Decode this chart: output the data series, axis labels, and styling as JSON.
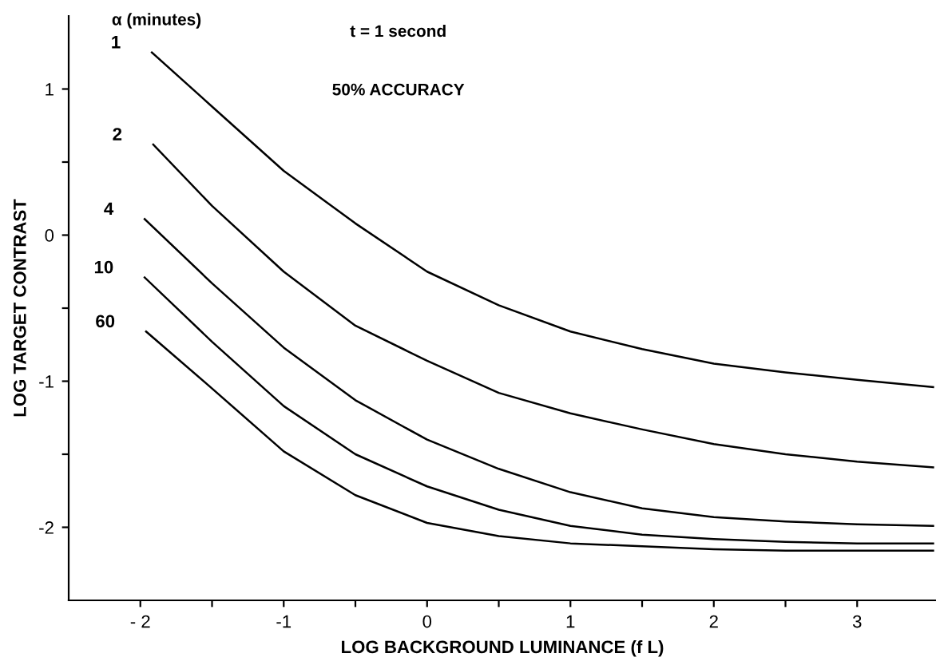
{
  "chart_data": {
    "type": "line",
    "xlabel": "LOG BACKGROUND LUMINANCE (f L)",
    "ylabel": "LOG TARGET CONTRAST",
    "legend_title": "α (minutes)",
    "annotations": [
      "t = 1 second",
      "50% ACCURACY"
    ],
    "xlim": [
      -2.5,
      3.55
    ],
    "ylim": [
      -2.5,
      1.5
    ],
    "xticks": [
      {
        "value": -2,
        "label": "- 2"
      },
      {
        "value": -1.5,
        "label": null
      },
      {
        "value": -1,
        "label": "-1"
      },
      {
        "value": -0.5,
        "label": null
      },
      0,
      {
        "value": 0.5,
        "label": null
      },
      1,
      {
        "value": 1.5,
        "label": null
      },
      2,
      {
        "value": 2.5,
        "label": null
      },
      3
    ],
    "yticks": [
      -2,
      {
        "value": -1.5,
        "label": null
      },
      -1,
      {
        "value": -0.5,
        "label": null
      },
      0,
      {
        "value": 0.5,
        "label": null
      },
      1
    ],
    "grid": false,
    "legend": false,
    "marker": "none",
    "line_style": "solid",
    "series": [
      {
        "name": "1",
        "color": "#000000",
        "x": [
          -1.92,
          -1.5,
          -1,
          -0.5,
          0,
          0.5,
          1,
          1.5,
          2,
          2.5,
          3,
          3.53
        ],
        "values": [
          1.25,
          0.88,
          0.44,
          0.08,
          -0.25,
          -0.48,
          -0.66,
          -0.78,
          -0.88,
          -0.94,
          -0.99,
          -1.04
        ]
      },
      {
        "name": "2",
        "color": "#000000",
        "x": [
          -1.91,
          -1.5,
          -1,
          -0.5,
          0,
          0.5,
          1,
          1.5,
          2,
          2.5,
          3,
          3.53
        ],
        "values": [
          0.62,
          0.2,
          -0.25,
          -0.62,
          -0.86,
          -1.08,
          -1.22,
          -1.33,
          -1.43,
          -1.5,
          -1.55,
          -1.59
        ]
      },
      {
        "name": "4",
        "color": "#000000",
        "x": [
          -1.97,
          -1.5,
          -1,
          -0.5,
          0,
          0.5,
          1,
          1.5,
          2,
          2.5,
          3,
          3.53
        ],
        "values": [
          0.11,
          -0.33,
          -0.77,
          -1.13,
          -1.4,
          -1.6,
          -1.76,
          -1.87,
          -1.93,
          -1.96,
          -1.98,
          -1.99
        ]
      },
      {
        "name": "10",
        "color": "#000000",
        "x": [
          -1.97,
          -1.5,
          -1,
          -0.5,
          0,
          0.5,
          1,
          1.5,
          2,
          2.5,
          3,
          3.53
        ],
        "values": [
          -0.29,
          -0.73,
          -1.17,
          -1.5,
          -1.72,
          -1.88,
          -1.99,
          -2.05,
          -2.08,
          -2.1,
          -2.11,
          -2.11
        ]
      },
      {
        "name": "60",
        "color": "#000000",
        "x": [
          -1.96,
          -1.5,
          -1,
          -0.5,
          0,
          0.5,
          1,
          1.5,
          2,
          2.5,
          3,
          3.53
        ],
        "values": [
          -0.66,
          -1.05,
          -1.48,
          -1.78,
          -1.97,
          -2.06,
          -2.11,
          -2.13,
          -2.15,
          -2.16,
          -2.16,
          -2.16
        ]
      }
    ]
  }
}
